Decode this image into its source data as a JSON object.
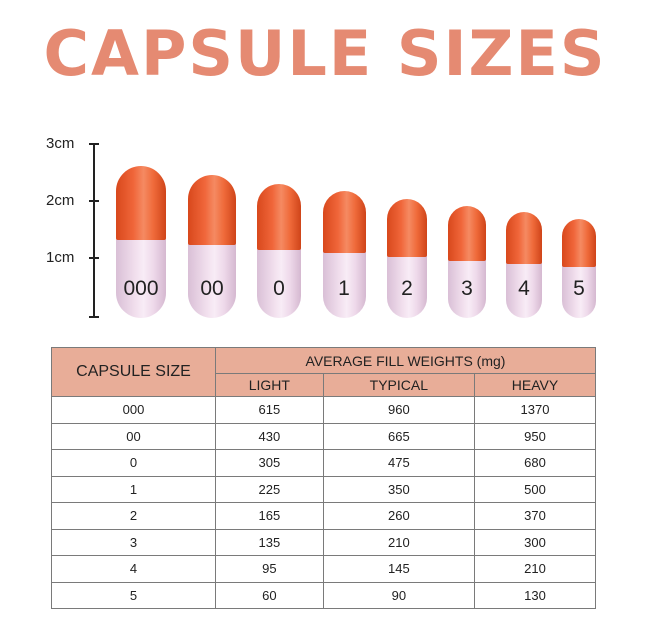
{
  "title": "CAPSULE SIZES",
  "ruler": {
    "labels": [
      "3cm",
      "2cm",
      "1cm"
    ]
  },
  "capsules": [
    {
      "size": "000"
    },
    {
      "size": "00"
    },
    {
      "size": "0"
    },
    {
      "size": "1"
    },
    {
      "size": "2"
    },
    {
      "size": "3"
    },
    {
      "size": "4"
    },
    {
      "size": "5"
    }
  ],
  "colors": {
    "title": "#e58a72",
    "header_fill": "#e8ad98",
    "cap_top": "#ef6a3a",
    "cap_bottom": "#f2e0ee"
  },
  "table": {
    "size_header": "CAPSULE SIZE",
    "group_header": "AVERAGE  FILL WEIGHTS (mg)",
    "columns": [
      "LIGHT",
      "TYPICAL",
      "HEAVY"
    ],
    "rows": [
      [
        "000",
        "615",
        "960",
        "1370"
      ],
      [
        "00",
        "430",
        "665",
        "950"
      ],
      [
        "0",
        "305",
        "475",
        "680"
      ],
      [
        "1",
        "225",
        "350",
        "500"
      ],
      [
        "2",
        "165",
        "260",
        "370"
      ],
      [
        "3",
        "135",
        "210",
        "300"
      ],
      [
        "4",
        "95",
        "145",
        "210"
      ],
      [
        "5",
        "60",
        "90",
        "130"
      ]
    ]
  }
}
